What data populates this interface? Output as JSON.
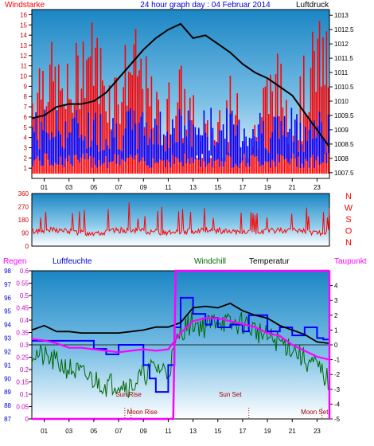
{
  "colors": {
    "wind": "#ff0000",
    "gust_blue": "#0000ff",
    "pressure": "#000000",
    "humidity": "#0000ff",
    "windchill": "#006600",
    "temperature": "#000000",
    "dewpoint": "#ff00ff",
    "rain": "#ff00ff"
  },
  "chart_data": [
    {
      "type": "bar",
      "title": "24 hour graph day : 04 Februar 2014",
      "left_label": "Windstarke",
      "right_label": "Luftdruck",
      "x_ticks": [
        "01",
        "03",
        "05",
        "07",
        "09",
        "11",
        "13",
        "15",
        "17",
        "19",
        "21",
        "23"
      ],
      "left_axis": {
        "ylim": [
          0,
          16.5
        ],
        "ticks": [
          "16",
          "15",
          "14",
          "13",
          "12",
          "11",
          "10",
          "9",
          "8",
          "7",
          "6",
          "5",
          "4",
          "3",
          "2",
          "1"
        ]
      },
      "right_axis": {
        "ylim": [
          1007.3,
          1013.2
        ],
        "ticks": [
          "1013",
          "1012.5",
          "1012",
          "1011.5",
          "1011",
          "1010.5",
          "1010",
          "1009.5",
          "1009",
          "1008.5",
          "1008",
          "1007.5"
        ]
      },
      "series": [
        {
          "name": "Luftdruck",
          "type": "line",
          "x": [
            0,
            1,
            2,
            3,
            4,
            5,
            6,
            7,
            8,
            9,
            10,
            11,
            12,
            13,
            14,
            15,
            16,
            17,
            18,
            19,
            20,
            21,
            22,
            23,
            24
          ],
          "values": [
            1009.4,
            1009.5,
            1009.8,
            1009.9,
            1009.9,
            1010.0,
            1010.3,
            1010.8,
            1011.3,
            1011.8,
            1012.2,
            1012.5,
            1012.7,
            1012.2,
            1012.3,
            1012.0,
            1011.7,
            1011.3,
            1011.0,
            1010.8,
            1010.5,
            1010.2,
            1009.6,
            1009.0,
            1008.4
          ]
        }
      ]
    },
    {
      "type": "line",
      "right_label": "N W S O N",
      "compass_letters": [
        "N",
        "W",
        "S",
        "O",
        "N"
      ],
      "ylim": [
        0,
        360
      ],
      "ticks": [
        "360",
        "270",
        "180",
        "90",
        "0"
      ],
      "series": [
        {
          "name": "Wind direction",
          "x": [
            0,
            1,
            2,
            3,
            4,
            5,
            6,
            7,
            8,
            9,
            10,
            11,
            12,
            13,
            14,
            15,
            16,
            17,
            18,
            19,
            20,
            21,
            22,
            23,
            24
          ],
          "values": [
            90,
            100,
            110,
            110,
            120,
            90,
            110,
            100,
            100,
            110,
            100,
            90,
            110,
            110,
            110,
            100,
            110,
            100,
            110,
            110,
            100,
            100,
            110,
            100,
            100
          ]
        }
      ]
    },
    {
      "type": "line",
      "labels": [
        "Regen",
        "Luftfeuchte",
        "Windchill",
        "Temperatur",
        "Taupunkt"
      ],
      "x_ticks": [
        "01",
        "03",
        "05",
        "07",
        "09",
        "11",
        "13",
        "15",
        "17",
        "19",
        "21",
        "23"
      ],
      "annotations": [
        "Sun Rise",
        "Moon Rise",
        "Sun Set",
        "Moon Set"
      ],
      "rain_axis": {
        "ylim": [
          0,
          0.6
        ],
        "ticks": [
          "0.6",
          "0.55",
          "0.5",
          "0.45",
          "0.4",
          "0.35",
          "0.3",
          "0.25",
          "0.2",
          "0.15",
          "0.1",
          "0.05",
          "0"
        ]
      },
      "humidity_axis": {
        "ylim": [
          87,
          98
        ],
        "ticks": [
          "98",
          "97",
          "96",
          "95",
          "94",
          "93",
          "92",
          "91",
          "90",
          "89",
          "88",
          "87"
        ]
      },
      "temperature_axis": {
        "ylim": [
          -5,
          5
        ],
        "ticks": [
          "4",
          "3",
          "2",
          "1",
          "0",
          "-1",
          "-2",
          "-3",
          "-4",
          "-5"
        ]
      },
      "series": [
        {
          "name": "Luftfeuchte",
          "x": [
            0,
            2,
            4,
            5,
            6,
            7,
            8,
            9,
            9.5,
            10,
            10.5,
            11,
            11.5,
            12,
            13,
            14,
            14.5,
            15,
            16,
            17,
            17.5,
            18,
            19,
            20,
            21,
            22,
            23,
            23.5,
            24
          ],
          "values": [
            92.8,
            92.8,
            92.8,
            92.2,
            91.8,
            92.5,
            92.5,
            91.0,
            90.0,
            89.0,
            89.0,
            91.0,
            93.8,
            96.0,
            94.8,
            94.0,
            94.5,
            93.8,
            94.0,
            93.5,
            94.7,
            94.7,
            93.5,
            93.8,
            93.2,
            93.8,
            93.0,
            92.9,
            92.8
          ]
        },
        {
          "name": "Windchill",
          "x": [
            0,
            2,
            4,
            6,
            7,
            8,
            9,
            10,
            11,
            12,
            13,
            14,
            15,
            16,
            17,
            18,
            19,
            20,
            21,
            22,
            23,
            24
          ],
          "values": [
            -0.5,
            -1.2,
            -2.0,
            -2.7,
            -2.5,
            -2.8,
            -2.0,
            -1.5,
            -1.8,
            1.0,
            1.5,
            1.2,
            1.8,
            1.3,
            1.5,
            1.0,
            0.5,
            0.2,
            -0.2,
            -1.0,
            -1.5,
            -2.5
          ]
        },
        {
          "name": "Temperatur",
          "x": [
            0,
            1,
            2,
            3,
            4,
            5,
            6,
            7,
            8,
            9,
            10,
            11,
            12,
            13,
            14,
            15,
            16,
            17,
            18,
            19,
            20,
            21,
            22,
            23,
            24
          ],
          "values": [
            1.0,
            1.3,
            0.9,
            0.9,
            0.8,
            0.8,
            0.8,
            0.8,
            0.9,
            1.0,
            1.2,
            1.2,
            1.5,
            2.5,
            2.6,
            2.5,
            2.8,
            2.3,
            2.0,
            1.8,
            1.3,
            1.0,
            0.7,
            0.2,
            0.1
          ]
        },
        {
          "name": "Taupunkt",
          "x": [
            0,
            1,
            2,
            3,
            4,
            5,
            6,
            7,
            8,
            9,
            10,
            11,
            12,
            13,
            14,
            15,
            16,
            17,
            18,
            19,
            20,
            21,
            22,
            23,
            24
          ],
          "values": [
            0.4,
            0.3,
            0.1,
            -0.2,
            -0.2,
            -0.3,
            -0.4,
            -0.5,
            -0.4,
            -0.3,
            -0.4,
            -0.3,
            0.8,
            1.6,
            1.8,
            1.8,
            1.6,
            1.4,
            1.2,
            0.8,
            0.6,
            0.0,
            -0.4,
            -0.8,
            -1.0
          ]
        },
        {
          "name": "Regen",
          "x": [
            0,
            11.4,
            11.6,
            24
          ],
          "values": [
            0,
            0,
            0.6,
            0.6
          ]
        }
      ]
    }
  ]
}
